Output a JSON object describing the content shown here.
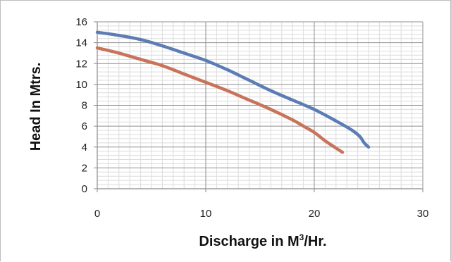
{
  "chart_data": {
    "type": "line",
    "title": "",
    "xlabel": "Discharge in M",
    "xlabel_superscript": "3",
    "xlabel_suffix": "/Hr.",
    "ylabel": "Head In Mtrs.",
    "xlim": [
      0,
      30
    ],
    "ylim": [
      0,
      16
    ],
    "x_ticks": [
      0,
      10,
      20,
      30
    ],
    "x_tick_labels": [
      "0",
      "10",
      "20",
      "30"
    ],
    "y_ticks": [
      0,
      2,
      4,
      6,
      8,
      10,
      12,
      14,
      16
    ],
    "y_tick_labels": [
      "0",
      "2",
      "4",
      "6",
      "8",
      "10",
      "12",
      "14",
      "16"
    ],
    "grid": true,
    "legend": "none",
    "series": [
      {
        "color": "#5b7cb4",
        "x": [
          0,
          2,
          4,
          6,
          8,
          10,
          12,
          14,
          16,
          18,
          20,
          22,
          23.5,
          24.2,
          24.6,
          25
        ],
        "y": [
          15.0,
          14.7,
          14.3,
          13.7,
          13.0,
          12.3,
          11.4,
          10.4,
          9.4,
          8.5,
          7.6,
          6.5,
          5.6,
          5.0,
          4.4,
          4.0
        ]
      },
      {
        "color": "#c8735a",
        "x": [
          0,
          2,
          4,
          6,
          8,
          10,
          12,
          14,
          16,
          18,
          19,
          20,
          21,
          22,
          22.6
        ],
        "y": [
          13.5,
          13.0,
          12.4,
          11.8,
          11.0,
          10.2,
          9.4,
          8.5,
          7.6,
          6.6,
          6.0,
          5.4,
          4.6,
          3.9,
          3.5
        ]
      }
    ]
  }
}
